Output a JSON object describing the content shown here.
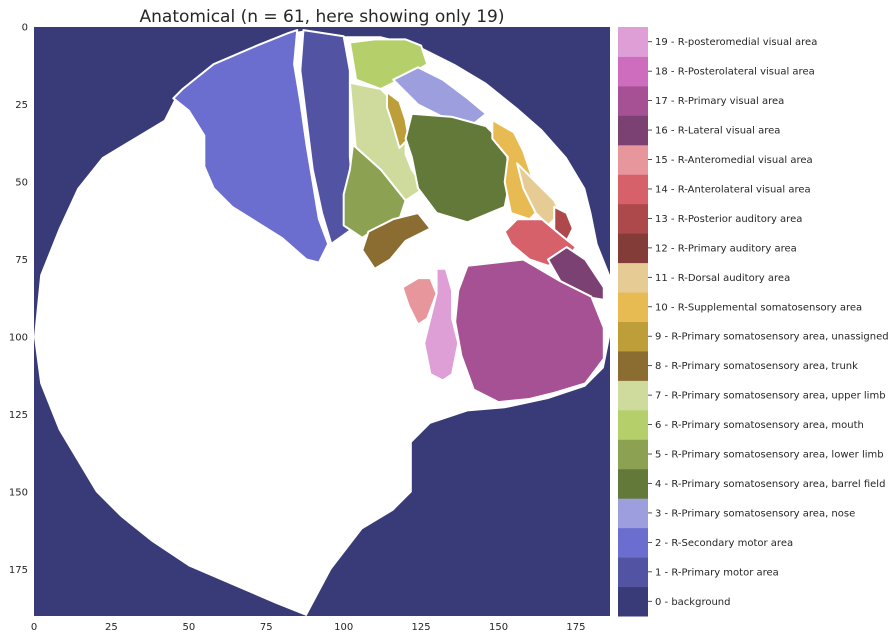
{
  "chart_data": {
    "type": "heatmap",
    "title": "Anatomical (n = 61, here showing only 19)",
    "xlim": [
      0,
      186
    ],
    "ylim": [
      190,
      0
    ],
    "x_ticks": [
      0,
      25,
      50,
      75,
      100,
      125,
      150,
      175
    ],
    "y_ticks": [
      0,
      25,
      50,
      75,
      100,
      125,
      150,
      175
    ],
    "grid": false,
    "background_color": "#393b79",
    "unlabeled_color": "#ffffff",
    "colorbar": {
      "placement": "right",
      "entries": [
        {
          "value": 0,
          "label": "0 - background",
          "color": "#393b79"
        },
        {
          "value": 1,
          "label": "1 - R-Primary motor area",
          "color": "#5254a3"
        },
        {
          "value": 2,
          "label": "2 - R-Secondary motor area",
          "color": "#6b6ecf"
        },
        {
          "value": 3,
          "label": "3 - R-Primary somatosensory area, nose",
          "color": "#9c9ede"
        },
        {
          "value": 4,
          "label": "4 - R-Primary somatosensory area, barrel field",
          "color": "#637939"
        },
        {
          "value": 5,
          "label": "5 - R-Primary somatosensory area, lower limb",
          "color": "#8ca252"
        },
        {
          "value": 6,
          "label": "6 - R-Primary somatosensory area, mouth",
          "color": "#b5cf6b"
        },
        {
          "value": 7,
          "label": "7 - R-Primary somatosensory area, upper limb",
          "color": "#cedb9c"
        },
        {
          "value": 8,
          "label": "8 - R-Primary somatosensory area, trunk",
          "color": "#8c6d31"
        },
        {
          "value": 9,
          "label": "9 - R-Primary somatosensory area, unassigned",
          "color": "#bd9e39"
        },
        {
          "value": 10,
          "label": "10 - R-Supplemental somatosensory area",
          "color": "#e7ba52"
        },
        {
          "value": 11,
          "label": "11 - R-Dorsal auditory area",
          "color": "#e7cb94"
        },
        {
          "value": 12,
          "label": "12 - R-Primary auditory area",
          "color": "#843c39"
        },
        {
          "value": 13,
          "label": "13 - R-Posterior auditory area",
          "color": "#ad494a"
        },
        {
          "value": 14,
          "label": "14 - R-Anterolateral visual area",
          "color": "#d6616b"
        },
        {
          "value": 15,
          "label": "15 - R-Anteromedial visual area",
          "color": "#e7969c"
        },
        {
          "value": 16,
          "label": "16 - R-Lateral visual area",
          "color": "#7b4173"
        },
        {
          "value": 17,
          "label": "17 - R-Primary visual area",
          "color": "#a55194"
        },
        {
          "value": 18,
          "label": "18 - R-Posterolateral visual area",
          "color": "#ce6dbd"
        },
        {
          "value": 19,
          "label": "19 - R-posteromedial visual area",
          "color": "#de9ed6"
        }
      ]
    },
    "regions": [
      {
        "value": 2,
        "polygon": [
          [
            48,
            20
          ],
          [
            58,
            12
          ],
          [
            72,
            6
          ],
          [
            82,
            2
          ],
          [
            85,
            1
          ],
          [
            84,
            12
          ],
          [
            86,
            24
          ],
          [
            88,
            38
          ],
          [
            90,
            50
          ],
          [
            92,
            62
          ],
          [
            95,
            70
          ],
          [
            92,
            76
          ],
          [
            88,
            75
          ],
          [
            80,
            68
          ],
          [
            72,
            63
          ],
          [
            64,
            58
          ],
          [
            58,
            52
          ],
          [
            55,
            45
          ],
          [
            55,
            35
          ],
          [
            50,
            27
          ],
          [
            45,
            23
          ]
        ]
      },
      {
        "value": 1,
        "polygon": [
          [
            87,
            1
          ],
          [
            100,
            3
          ],
          [
            102,
            14
          ],
          [
            102,
            28
          ],
          [
            102,
            42
          ],
          [
            103,
            53
          ],
          [
            103,
            65
          ],
          [
            96,
            70
          ],
          [
            93,
            60
          ],
          [
            90,
            46
          ],
          [
            88,
            30
          ],
          [
            86,
            14
          ]
        ]
      },
      {
        "value": 6,
        "polygon": [
          [
            102,
            5
          ],
          [
            110,
            4
          ],
          [
            120,
            4
          ],
          [
            125,
            6
          ],
          [
            127,
            12
          ],
          [
            120,
            16
          ],
          [
            112,
            20
          ],
          [
            104,
            17
          ]
        ]
      },
      {
        "value": 3,
        "polygon": [
          [
            116,
            17
          ],
          [
            124,
            13
          ],
          [
            132,
            17
          ],
          [
            140,
            23
          ],
          [
            146,
            28
          ],
          [
            141,
            32
          ],
          [
            132,
            29
          ],
          [
            124,
            25
          ]
        ]
      },
      {
        "value": 7,
        "polygon": [
          [
            102,
            18
          ],
          [
            112,
            20
          ],
          [
            118,
            26
          ],
          [
            120,
            34
          ],
          [
            120,
            41
          ],
          [
            122,
            46
          ],
          [
            126,
            52
          ],
          [
            120,
            56
          ],
          [
            112,
            48
          ],
          [
            104,
            40
          ]
        ]
      },
      {
        "value": 5,
        "polygon": [
          [
            103,
            38
          ],
          [
            112,
            46
          ],
          [
            120,
            56
          ],
          [
            118,
            62
          ],
          [
            112,
            64
          ],
          [
            106,
            68
          ],
          [
            100,
            64
          ],
          [
            100,
            54
          ],
          [
            102,
            46
          ]
        ]
      },
      {
        "value": 9,
        "polygon": [
          [
            114,
            21
          ],
          [
            118,
            24
          ],
          [
            120,
            30
          ],
          [
            121,
            36
          ],
          [
            118,
            39
          ],
          [
            116,
            32
          ],
          [
            114,
            26
          ]
        ]
      },
      {
        "value": 4,
        "polygon": [
          [
            122,
            28
          ],
          [
            135,
            29
          ],
          [
            146,
            32
          ],
          [
            152,
            38
          ],
          [
            154,
            48
          ],
          [
            152,
            58
          ],
          [
            140,
            63
          ],
          [
            130,
            60
          ],
          [
            124,
            52
          ],
          [
            122,
            42
          ],
          [
            120,
            36
          ]
        ]
      },
      {
        "value": 8,
        "polygon": [
          [
            108,
            66
          ],
          [
            116,
            62
          ],
          [
            124,
            60
          ],
          [
            128,
            65
          ],
          [
            120,
            69
          ],
          [
            115,
            75
          ],
          [
            110,
            78
          ],
          [
            106,
            72
          ]
        ]
      },
      {
        "value": 10,
        "polygon": [
          [
            148,
            30
          ],
          [
            155,
            34
          ],
          [
            158,
            40
          ],
          [
            160,
            46
          ],
          [
            162,
            52
          ],
          [
            164,
            58
          ],
          [
            160,
            62
          ],
          [
            154,
            60
          ],
          [
            152,
            50
          ],
          [
            153,
            42
          ],
          [
            148,
            36
          ]
        ]
      },
      {
        "value": 11,
        "polygon": [
          [
            156,
            44
          ],
          [
            162,
            50
          ],
          [
            168,
            56
          ],
          [
            170,
            60
          ],
          [
            166,
            64
          ],
          [
            162,
            60
          ],
          [
            158,
            52
          ]
        ]
      },
      {
        "value": 13,
        "polygon": [
          [
            168,
            58
          ],
          [
            172,
            60
          ],
          [
            174,
            65
          ],
          [
            172,
            69
          ],
          [
            168,
            66
          ]
        ]
      },
      {
        "value": 14,
        "polygon": [
          [
            156,
            62
          ],
          [
            164,
            62
          ],
          [
            170,
            67
          ],
          [
            175,
            71
          ],
          [
            172,
            75
          ],
          [
            166,
            77
          ],
          [
            160,
            75
          ],
          [
            154,
            70
          ],
          [
            152,
            66
          ]
        ]
      },
      {
        "value": 16,
        "polygon": [
          [
            166,
            75
          ],
          [
            172,
            71
          ],
          [
            178,
            75
          ],
          [
            184,
            84
          ],
          [
            184,
            88
          ],
          [
            178,
            87
          ],
          [
            170,
            82
          ]
        ]
      },
      {
        "value": 17,
        "polygon": [
          [
            140,
            77
          ],
          [
            158,
            75
          ],
          [
            170,
            82
          ],
          [
            180,
            87
          ],
          [
            184,
            97
          ],
          [
            184,
            107
          ],
          [
            178,
            115
          ],
          [
            168,
            118
          ],
          [
            160,
            120
          ],
          [
            150,
            121
          ],
          [
            142,
            117
          ],
          [
            138,
            106
          ],
          [
            136,
            95
          ],
          [
            137,
            85
          ]
        ]
      },
      {
        "value": 15,
        "polygon": [
          [
            119,
            84
          ],
          [
            124,
            81
          ],
          [
            128,
            81
          ],
          [
            130,
            86
          ],
          [
            127,
            94
          ],
          [
            124,
            96
          ],
          [
            121,
            90
          ]
        ]
      },
      {
        "value": 19,
        "polygon": [
          [
            130,
            78
          ],
          [
            133,
            78
          ],
          [
            135,
            85
          ],
          [
            135,
            94
          ],
          [
            137,
            102
          ],
          [
            135,
            112
          ],
          [
            132,
            114
          ],
          [
            128,
            112
          ],
          [
            126,
            102
          ],
          [
            128,
            94
          ],
          [
            130,
            86
          ]
        ]
      }
    ]
  }
}
